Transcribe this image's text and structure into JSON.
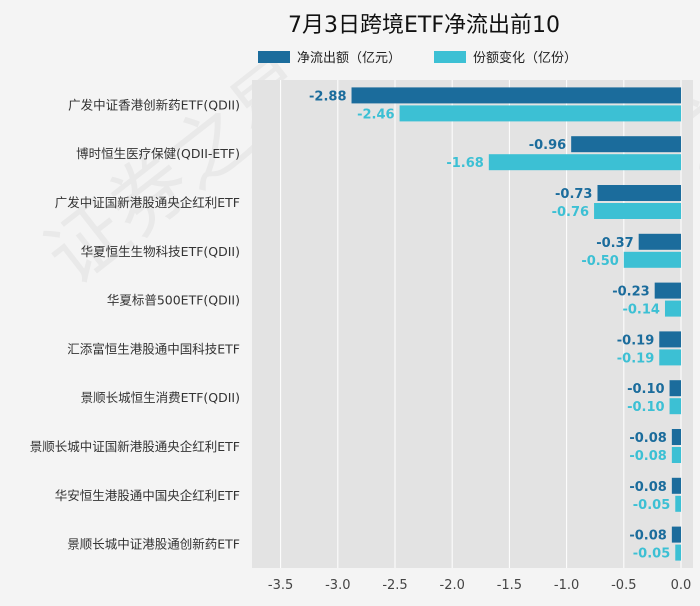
{
  "chart_data": {
    "type": "bar",
    "orientation": "horizontal",
    "title": "7月3日跨境ETF净流出前10",
    "categories": [
      "广发中证香港创新药ETF(QDII)",
      "博时恒生医疗保健(QDII-ETF)",
      "广发中证国新港股通央企红利ETF",
      "华夏恒生生物科技ETF(QDII)",
      "华夏标普500ETF(QDII)",
      "汇添富恒生港股通中国科技ETF",
      "景顺长城恒生消费ETF(QDII)",
      "景顺长城中证国新港股通央企红利ETF",
      "华安恒生港股通中国央企红利ETF",
      "景顺长城中证港股通创新药ETF"
    ],
    "series": [
      {
        "name": "净流出额（亿元）",
        "color": "#1b6c9c",
        "values": [
          -2.88,
          -0.96,
          -0.73,
          -0.37,
          -0.23,
          -0.19,
          -0.1,
          -0.08,
          -0.08,
          -0.08
        ],
        "labels": [
          "-2.88",
          "-0.96",
          "-0.73",
          "-0.37",
          "-0.23",
          "-0.19",
          "-0.10",
          "-0.08",
          "-0.08",
          "-0.08"
        ]
      },
      {
        "name": "份额变化（亿份）",
        "color": "#3cc0d4",
        "values": [
          -2.46,
          -1.68,
          -0.76,
          -0.5,
          -0.14,
          -0.19,
          -0.1,
          -0.08,
          -0.05,
          -0.05
        ],
        "labels": [
          "-2.46",
          "-1.68",
          "-0.76",
          "-0.50",
          "-0.14",
          "-0.19",
          "-0.10",
          "-0.08",
          "-0.05",
          "-0.05"
        ]
      }
    ],
    "xlim": [
      -3.75,
      0.0
    ],
    "xticks": [
      -3.5,
      -3.0,
      -2.5,
      -2.0,
      -1.5,
      -1.0,
      -0.5,
      0.0
    ],
    "xtick_labels": [
      "-3.5",
      "-3.0",
      "-2.5",
      "-2.0",
      "-1.5",
      "-1.0",
      "-0.5",
      "0.0"
    ],
    "grid": true,
    "legend_position": "top",
    "plot_background": "#e3e3e3",
    "watermark": "证券之星"
  }
}
